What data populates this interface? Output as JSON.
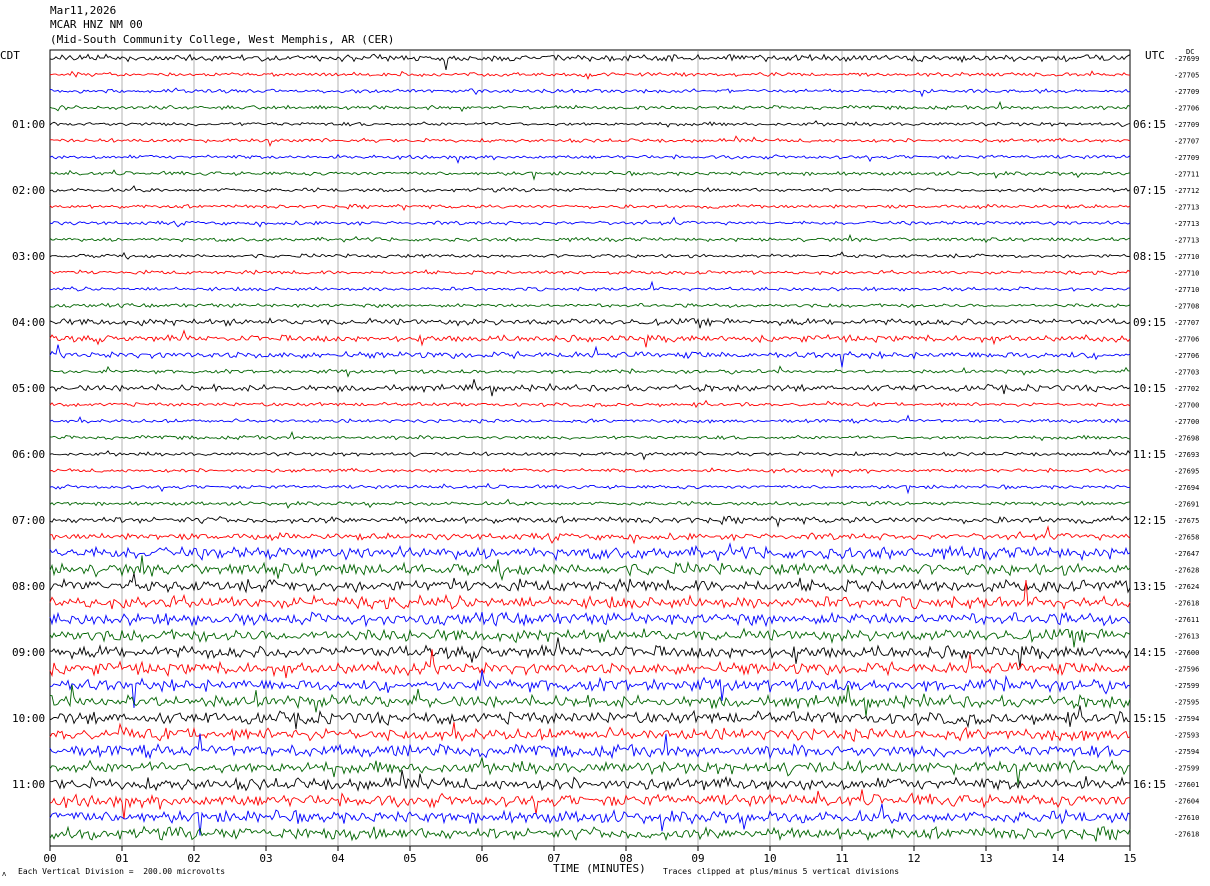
{
  "header": {
    "date": "Mar11,2026",
    "station": "MCAR HNZ NM 00",
    "location": "(Mid-South Community College, West Memphis, AR (CER)"
  },
  "timezone_left": "CDT",
  "timezone_right": "UTC",
  "footer": {
    "scale": "Each Vertical Division =  200.00 microvolts",
    "clip_note": "Traces clipped at plus/minus 5 vertical divisions",
    "corner_mark": "ʌ"
  },
  "colors": {
    "trace_cycle": [
      "#000000",
      "#ff0000",
      "#0000ff",
      "#006400"
    ],
    "grid": "#808080"
  },
  "chart_data": {
    "type": "line",
    "title": "Mar11,2026 MCAR HNZ NM 00",
    "xlabel": "TIME (MINUTES)",
    "x_ticks": [
      "00",
      "01",
      "02",
      "03",
      "04",
      "05",
      "06",
      "07",
      "08",
      "09",
      "10",
      "11",
      "12",
      "13",
      "14",
      "15"
    ],
    "xlim": [
      0,
      15
    ],
    "trace_minutes_per_line": 15,
    "left_time_labels": [
      "01:00",
      "02:00",
      "03:00",
      "04:00",
      "05:00",
      "06:00",
      "07:00",
      "08:00",
      "09:00",
      "10:00",
      "11:00"
    ],
    "right_time_labels": [
      "06:15",
      "07:15",
      "08:15",
      "09:15",
      "10:15",
      "11:15",
      "12:15",
      "13:15",
      "14:15",
      "15:15",
      "16:15"
    ],
    "trace_label_first": "DC",
    "trace_offsets": [
      -27699,
      -27705,
      -27709,
      -27706,
      -27709,
      -27707,
      -27709,
      -27711,
      -27712,
      -27713,
      -27713,
      -27713,
      -27710,
      -27710,
      -27710,
      -27708,
      -27707,
      -27706,
      -27706,
      -27703,
      -27702,
      -27700,
      -27700,
      -27698,
      -27693,
      -27695,
      -27694,
      -27691,
      -27675,
      -27658,
      -27647,
      -27628,
      -27624,
      -27618,
      -27611,
      -27613,
      -27600,
      -27596,
      -27599,
      -27595,
      -27594,
      -27593,
      -27594,
      -27599,
      -27601,
      -27604,
      -27610,
      -27618
    ],
    "amplitude_classes": [
      2,
      1,
      1,
      1,
      1,
      1,
      1,
      1,
      1,
      1,
      1,
      1,
      1,
      1,
      1,
      1,
      2,
      2,
      2,
      1,
      2,
      1,
      1,
      1,
      1,
      1,
      1,
      1,
      2,
      2,
      3,
      3,
      3,
      3,
      3,
      3,
      3,
      3,
      3,
      3,
      3,
      3,
      3,
      3,
      3,
      3,
      3,
      3
    ]
  }
}
